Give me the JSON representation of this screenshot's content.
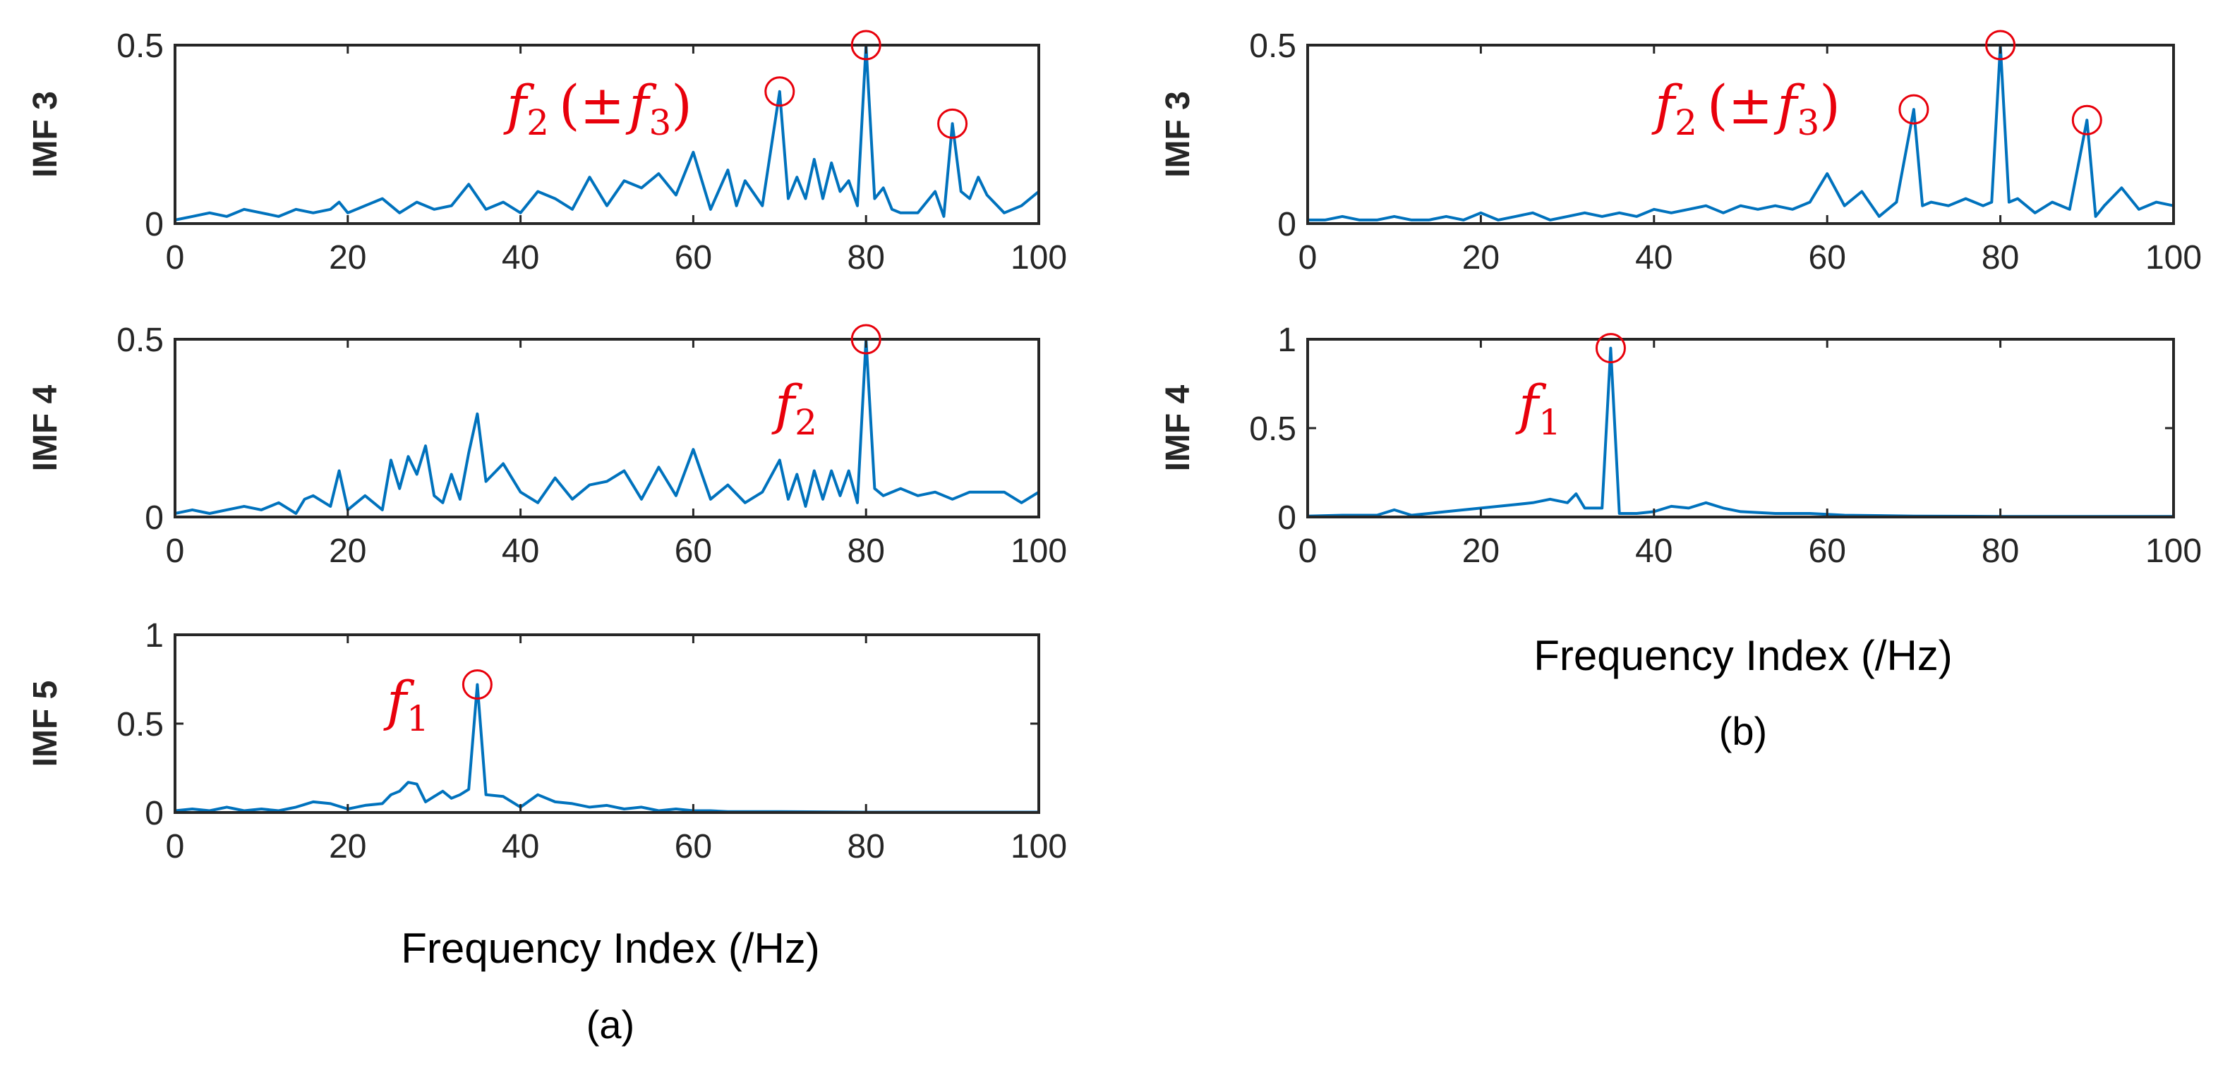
{
  "chart_data": [
    {
      "id": "a-imf3",
      "group": "a",
      "type": "line",
      "ylabel": "IMF 3",
      "xlim": [
        0,
        100
      ],
      "ylim": [
        0,
        0.5
      ],
      "xticks": [
        "0",
        "20",
        "40",
        "60",
        "80",
        "100"
      ],
      "yticks": [
        "0",
        "0.5"
      ],
      "series": [
        {
          "name": "IMF 3 spectrum",
          "color": "#0072BD",
          "x": [
            0,
            2,
            4,
            6,
            8,
            10,
            12,
            14,
            16,
            18,
            19,
            20,
            22,
            24,
            26,
            28,
            30,
            32,
            34,
            36,
            38,
            40,
            42,
            44,
            46,
            48,
            50,
            52,
            54,
            56,
            58,
            60,
            62,
            64,
            65,
            66,
            68,
            70,
            71,
            72,
            73,
            74,
            75,
            76,
            77,
            78,
            79,
            80,
            81,
            82,
            83,
            84,
            86,
            88,
            89,
            90,
            91,
            92,
            93,
            94,
            96,
            98,
            100
          ],
          "y": [
            0.01,
            0.02,
            0.03,
            0.02,
            0.04,
            0.03,
            0.02,
            0.04,
            0.03,
            0.04,
            0.06,
            0.03,
            0.05,
            0.07,
            0.03,
            0.06,
            0.04,
            0.05,
            0.11,
            0.04,
            0.06,
            0.03,
            0.09,
            0.07,
            0.04,
            0.13,
            0.05,
            0.12,
            0.1,
            0.14,
            0.08,
            0.2,
            0.04,
            0.15,
            0.05,
            0.12,
            0.05,
            0.37,
            0.07,
            0.13,
            0.07,
            0.18,
            0.07,
            0.17,
            0.09,
            0.12,
            0.05,
            0.5,
            0.07,
            0.1,
            0.04,
            0.03,
            0.03,
            0.09,
            0.02,
            0.28,
            0.09,
            0.07,
            0.13,
            0.08,
            0.03,
            0.05,
            0.09
          ]
        }
      ],
      "annotations": [
        {
          "label": "f",
          "sub": "2",
          "text": "(±",
          "label2": "f",
          "sub2": "3",
          "close": ")"
        }
      ],
      "markers": [
        {
          "x": 70,
          "y": 0.37
        },
        {
          "x": 80,
          "y": 0.5
        },
        {
          "x": 90,
          "y": 0.28
        }
      ]
    },
    {
      "id": "a-imf4",
      "group": "a",
      "type": "line",
      "ylabel": "IMF 4",
      "xlim": [
        0,
        100
      ],
      "ylim": [
        0,
        0.5
      ],
      "xticks": [
        "0",
        "20",
        "40",
        "60",
        "80",
        "100"
      ],
      "yticks": [
        "0",
        "0.5"
      ],
      "series": [
        {
          "name": "IMF 4 spectrum",
          "color": "#0072BD",
          "x": [
            0,
            2,
            4,
            6,
            8,
            10,
            12,
            14,
            15,
            16,
            18,
            19,
            20,
            22,
            24,
            25,
            26,
            27,
            28,
            29,
            30,
            31,
            32,
            33,
            34,
            35,
            36,
            38,
            40,
            42,
            44,
            46,
            48,
            50,
            52,
            54,
            56,
            58,
            60,
            62,
            64,
            66,
            68,
            70,
            71,
            72,
            73,
            74,
            75,
            76,
            77,
            78,
            79,
            80,
            81,
            82,
            84,
            86,
            88,
            90,
            92,
            94,
            96,
            98,
            100
          ],
          "y": [
            0.01,
            0.02,
            0.01,
            0.02,
            0.03,
            0.02,
            0.04,
            0.01,
            0.05,
            0.06,
            0.03,
            0.13,
            0.02,
            0.06,
            0.02,
            0.16,
            0.08,
            0.17,
            0.12,
            0.2,
            0.06,
            0.04,
            0.12,
            0.05,
            0.18,
            0.29,
            0.1,
            0.15,
            0.07,
            0.04,
            0.11,
            0.05,
            0.09,
            0.1,
            0.13,
            0.05,
            0.14,
            0.06,
            0.19,
            0.05,
            0.09,
            0.04,
            0.07,
            0.16,
            0.05,
            0.12,
            0.03,
            0.13,
            0.05,
            0.13,
            0.06,
            0.13,
            0.04,
            0.5,
            0.08,
            0.06,
            0.08,
            0.06,
            0.07,
            0.05,
            0.07,
            0.07,
            0.07,
            0.04,
            0.07
          ]
        }
      ],
      "annotations": [
        {
          "label": "f",
          "sub": "2"
        }
      ],
      "markers": [
        {
          "x": 80,
          "y": 0.5
        }
      ]
    },
    {
      "id": "a-imf5",
      "group": "a",
      "type": "line",
      "ylabel": "IMF 5",
      "xlim": [
        0,
        100
      ],
      "ylim": [
        0,
        1
      ],
      "xticks": [
        "0",
        "20",
        "40",
        "60",
        "80",
        "100"
      ],
      "yticks": [
        "0",
        "0.5",
        "1"
      ],
      "series": [
        {
          "name": "IMF 5 spectrum",
          "color": "#0072BD",
          "x": [
            0,
            2,
            4,
            6,
            8,
            10,
            12,
            14,
            16,
            18,
            20,
            22,
            24,
            25,
            26,
            27,
            28,
            29,
            30,
            31,
            32,
            33,
            34,
            35,
            36,
            38,
            40,
            42,
            44,
            46,
            48,
            50,
            52,
            54,
            56,
            58,
            60,
            62,
            64,
            70,
            80,
            100
          ],
          "y": [
            0.01,
            0.02,
            0.01,
            0.03,
            0.01,
            0.02,
            0.01,
            0.03,
            0.06,
            0.05,
            0.02,
            0.04,
            0.05,
            0.1,
            0.12,
            0.17,
            0.16,
            0.06,
            0.09,
            0.12,
            0.08,
            0.1,
            0.13,
            0.72,
            0.1,
            0.09,
            0.03,
            0.1,
            0.06,
            0.05,
            0.03,
            0.04,
            0.02,
            0.03,
            0.01,
            0.02,
            0.01,
            0.01,
            0.005,
            0.005,
            0.002,
            0.002
          ]
        }
      ],
      "annotations": [
        {
          "label": "f",
          "sub": "1"
        }
      ],
      "markers": [
        {
          "x": 35,
          "y": 0.72
        }
      ]
    },
    {
      "id": "b-imf3",
      "group": "b",
      "type": "line",
      "ylabel": "IMF 3",
      "xlim": [
        0,
        100
      ],
      "ylim": [
        0,
        0.5
      ],
      "xticks": [
        "0",
        "20",
        "40",
        "60",
        "80",
        "100"
      ],
      "yticks": [
        "0",
        "0.5"
      ],
      "series": [
        {
          "name": "IMF 3 spectrum",
          "color": "#0072BD",
          "x": [
            0,
            2,
            4,
            6,
            8,
            10,
            12,
            14,
            16,
            18,
            20,
            22,
            24,
            26,
            28,
            30,
            32,
            34,
            36,
            38,
            40,
            42,
            44,
            46,
            48,
            50,
            52,
            54,
            56,
            58,
            60,
            62,
            64,
            66,
            68,
            70,
            71,
            72,
            74,
            76,
            78,
            79,
            80,
            81,
            82,
            84,
            86,
            88,
            90,
            91,
            92,
            94,
            96,
            98,
            100
          ],
          "y": [
            0.01,
            0.01,
            0.02,
            0.01,
            0.01,
            0.02,
            0.01,
            0.01,
            0.02,
            0.01,
            0.03,
            0.01,
            0.02,
            0.03,
            0.01,
            0.02,
            0.03,
            0.02,
            0.03,
            0.02,
            0.04,
            0.03,
            0.04,
            0.05,
            0.03,
            0.05,
            0.04,
            0.05,
            0.04,
            0.06,
            0.14,
            0.05,
            0.09,
            0.02,
            0.06,
            0.32,
            0.05,
            0.06,
            0.05,
            0.07,
            0.05,
            0.06,
            0.5,
            0.06,
            0.07,
            0.03,
            0.06,
            0.04,
            0.29,
            0.02,
            0.05,
            0.1,
            0.04,
            0.06,
            0.05
          ]
        }
      ],
      "annotations": [
        {
          "label": "f",
          "sub": "2",
          "text": "(±",
          "label2": "f",
          "sub2": "3",
          "close": ")"
        }
      ],
      "markers": [
        {
          "x": 70,
          "y": 0.32
        },
        {
          "x": 80,
          "y": 0.5
        },
        {
          "x": 90,
          "y": 0.29
        }
      ]
    },
    {
      "id": "b-imf4",
      "group": "b",
      "type": "line",
      "ylabel": "IMF 4",
      "xlim": [
        0,
        100
      ],
      "ylim": [
        0,
        1
      ],
      "xticks": [
        "0",
        "20",
        "40",
        "60",
        "80",
        "100"
      ],
      "yticks": [
        "0",
        "0.5",
        "1"
      ],
      "series": [
        {
          "name": "IMF 4 spectrum",
          "color": "#0072BD",
          "x": [
            0,
            4,
            8,
            10,
            12,
            16,
            20,
            22,
            24,
            26,
            28,
            30,
            31,
            32,
            34,
            35,
            36,
            38,
            40,
            42,
            44,
            46,
            48,
            50,
            54,
            58,
            62,
            70,
            80,
            90,
            100
          ],
          "y": [
            0.005,
            0.01,
            0.01,
            0.04,
            0.01,
            0.03,
            0.05,
            0.06,
            0.07,
            0.08,
            0.1,
            0.08,
            0.13,
            0.05,
            0.05,
            0.95,
            0.02,
            0.02,
            0.03,
            0.06,
            0.05,
            0.08,
            0.05,
            0.03,
            0.02,
            0.02,
            0.01,
            0.005,
            0.003,
            0.003,
            0.003
          ]
        }
      ],
      "annotations": [
        {
          "label": "f",
          "sub": "1"
        }
      ],
      "markers": [
        {
          "x": 35,
          "y": 0.95
        }
      ]
    }
  ],
  "xlabel_a": "Frequency Index (/Hz)",
  "xlabel_b": "Frequency Index (/Hz)",
  "panel_a": "(a)",
  "panel_b": "(b)",
  "colors": {
    "line": "#0072BD",
    "marker": "#e8000b",
    "axis": "#262626"
  }
}
